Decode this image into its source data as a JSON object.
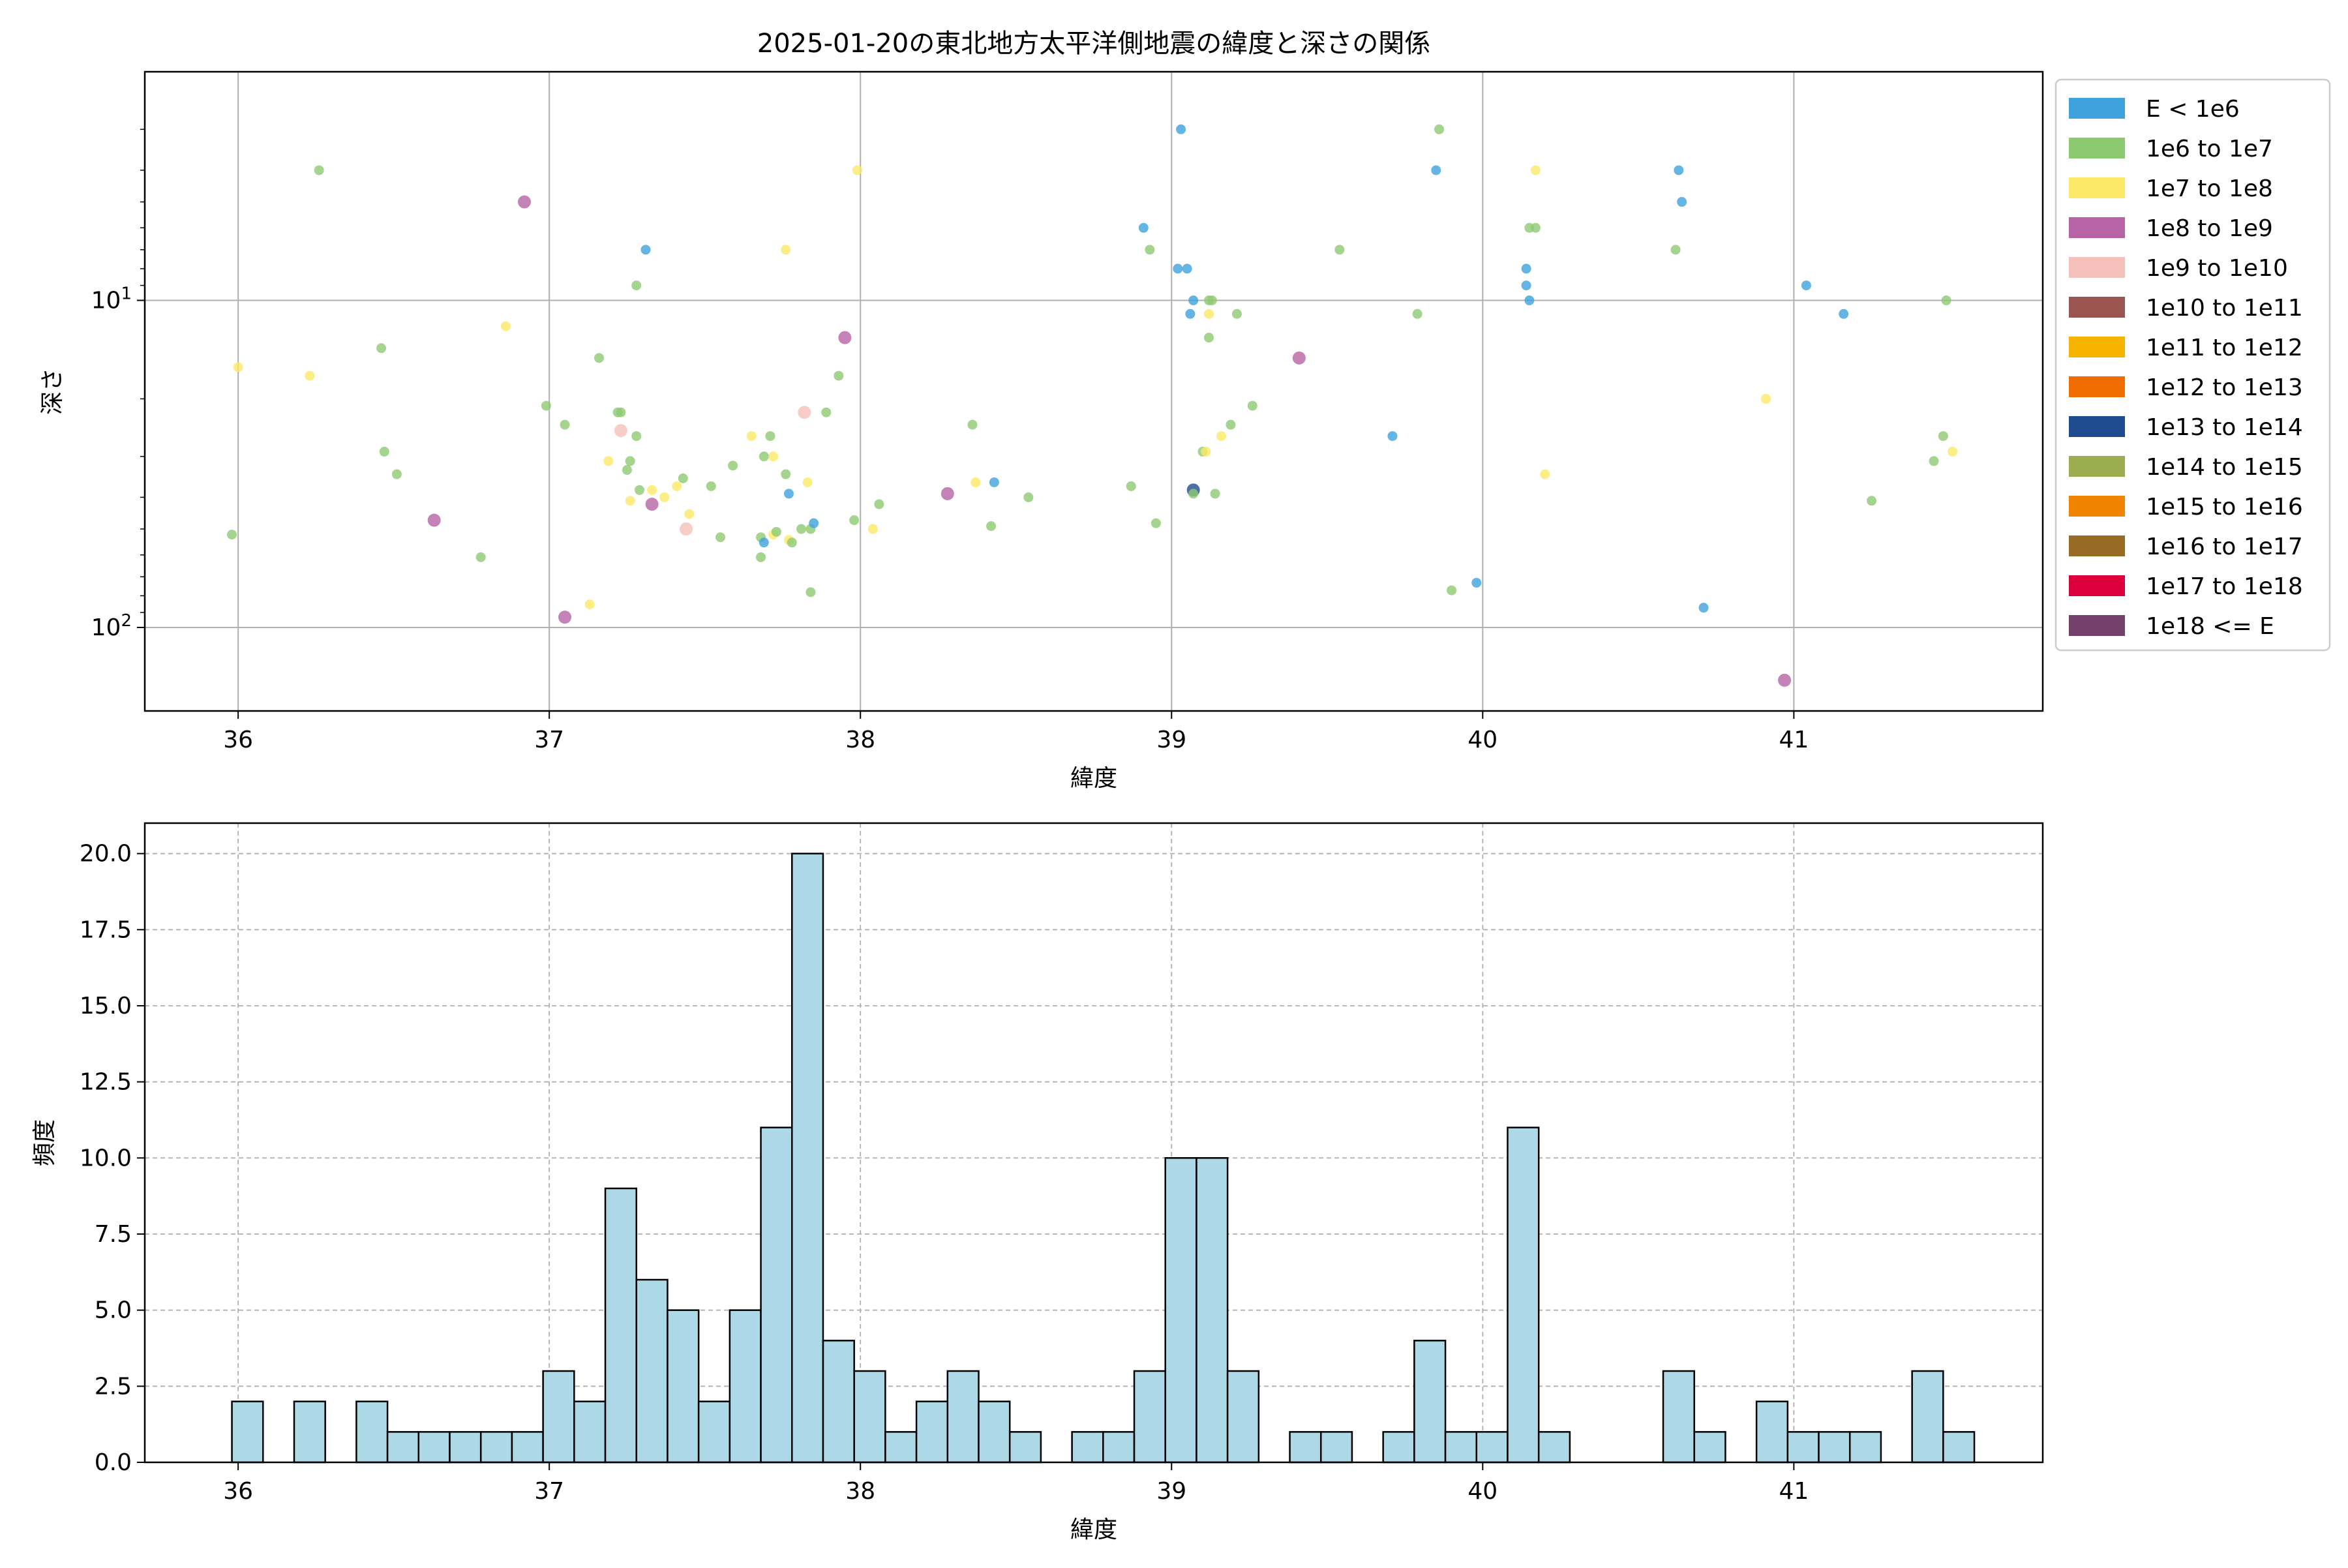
{
  "chart_data": [
    {
      "type": "scatter",
      "title": "2025-01-20の東北地方太平洋側地震の緯度と深さの関係",
      "xlabel": "緯度",
      "ylabel": "深さ",
      "xlim": [
        35.7,
        41.8
      ],
      "ylim": [
        180,
        2
      ],
      "y_scale": "log",
      "y_inverted": true,
      "grid": true,
      "x_ticks": [
        "36",
        "37",
        "38",
        "39",
        "40",
        "41"
      ],
      "y_ticks": [
        {
          "value": 10,
          "base": "10",
          "exp": "1"
        },
        {
          "value": 100,
          "base": "10",
          "exp": "2"
        }
      ],
      "legend_position": "outside-right",
      "legend": [
        {
          "label": "E < 1e6",
          "color": "#3fa2dd"
        },
        {
          "label": "1e6 to 1e7",
          "color": "#8dc971"
        },
        {
          "label": "1e7 to 1e8",
          "color": "#fbe967"
        },
        {
          "label": "1e8 to 1e9",
          "color": "#b763a5"
        },
        {
          "label": "1e9 to 1e10",
          "color": "#f5c0b9"
        },
        {
          "label": "1e10 to 1e11",
          "color": "#9a5550"
        },
        {
          "label": "1e11 to 1e12",
          "color": "#f6b400"
        },
        {
          "label": "1e12 to 1e13",
          "color": "#ee6c00"
        },
        {
          "label": "1e13 to 1e14",
          "color": "#1f4b91"
        },
        {
          "label": "1e14 to 1e15",
          "color": "#9cad4f"
        },
        {
          "label": "1e15 to 1e16",
          "color": "#f08300"
        },
        {
          "label": "1e16 to 1e17",
          "color": "#976b23"
        },
        {
          "label": "1e17 to 1e18",
          "color": "#db003c"
        },
        {
          "label": "1e18 <= E",
          "color": "#72406b"
        }
      ],
      "points": [
        {
          "x": 35.98,
          "y": 52,
          "c": 1
        },
        {
          "x": 36.0,
          "y": 16,
          "c": 2
        },
        {
          "x": 36.23,
          "y": 17,
          "c": 2
        },
        {
          "x": 36.26,
          "y": 4,
          "c": 1
        },
        {
          "x": 36.46,
          "y": 14,
          "c": 1
        },
        {
          "x": 36.47,
          "y": 29,
          "c": 1
        },
        {
          "x": 36.51,
          "y": 34,
          "c": 1
        },
        {
          "x": 36.63,
          "y": 47,
          "c": 3
        },
        {
          "x": 36.78,
          "y": 61,
          "c": 1
        },
        {
          "x": 36.86,
          "y": 12,
          "c": 2
        },
        {
          "x": 36.92,
          "y": 5,
          "c": 3
        },
        {
          "x": 36.99,
          "y": 21,
          "c": 1
        },
        {
          "x": 37.05,
          "y": 24,
          "c": 1
        },
        {
          "x": 37.05,
          "y": 93,
          "c": 3
        },
        {
          "x": 37.13,
          "y": 85,
          "c": 2
        },
        {
          "x": 37.16,
          "y": 15,
          "c": 1
        },
        {
          "x": 37.19,
          "y": 31,
          "c": 2
        },
        {
          "x": 37.22,
          "y": 22,
          "c": 1
        },
        {
          "x": 37.23,
          "y": 22,
          "c": 1
        },
        {
          "x": 37.23,
          "y": 25,
          "c": 4
        },
        {
          "x": 37.25,
          "y": 33,
          "c": 1
        },
        {
          "x": 37.26,
          "y": 31,
          "c": 1
        },
        {
          "x": 37.26,
          "y": 41,
          "c": 2
        },
        {
          "x": 37.28,
          "y": 9,
          "c": 1
        },
        {
          "x": 37.28,
          "y": 26,
          "c": 1
        },
        {
          "x": 37.29,
          "y": 38,
          "c": 1
        },
        {
          "x": 37.31,
          "y": 7,
          "c": 0
        },
        {
          "x": 37.33,
          "y": 38,
          "c": 2
        },
        {
          "x": 37.33,
          "y": 42,
          "c": 3
        },
        {
          "x": 37.37,
          "y": 40,
          "c": 2
        },
        {
          "x": 37.41,
          "y": 37,
          "c": 2
        },
        {
          "x": 37.43,
          "y": 35,
          "c": 1
        },
        {
          "x": 37.44,
          "y": 50,
          "c": 4
        },
        {
          "x": 37.45,
          "y": 45,
          "c": 2
        },
        {
          "x": 37.52,
          "y": 37,
          "c": 1
        },
        {
          "x": 37.55,
          "y": 53,
          "c": 1
        },
        {
          "x": 37.59,
          "y": 32,
          "c": 1
        },
        {
          "x": 37.65,
          "y": 26,
          "c": 2
        },
        {
          "x": 37.68,
          "y": 53,
          "c": 1
        },
        {
          "x": 37.68,
          "y": 61,
          "c": 1
        },
        {
          "x": 37.69,
          "y": 30,
          "c": 1
        },
        {
          "x": 37.69,
          "y": 55,
          "c": 0
        },
        {
          "x": 37.71,
          "y": 26,
          "c": 1
        },
        {
          "x": 37.72,
          "y": 30,
          "c": 2
        },
        {
          "x": 37.72,
          "y": 52,
          "c": 2
        },
        {
          "x": 37.73,
          "y": 51,
          "c": 1
        },
        {
          "x": 37.76,
          "y": 7,
          "c": 2
        },
        {
          "x": 37.76,
          "y": 34,
          "c": 1
        },
        {
          "x": 37.77,
          "y": 39,
          "c": 0
        },
        {
          "x": 37.77,
          "y": 54,
          "c": 2
        },
        {
          "x": 37.78,
          "y": 55,
          "c": 1
        },
        {
          "x": 37.81,
          "y": 50,
          "c": 1
        },
        {
          "x": 37.82,
          "y": 22,
          "c": 4
        },
        {
          "x": 37.83,
          "y": 36,
          "c": 2
        },
        {
          "x": 37.84,
          "y": 78,
          "c": 1
        },
        {
          "x": 37.84,
          "y": 50,
          "c": 1
        },
        {
          "x": 37.85,
          "y": 48,
          "c": 0
        },
        {
          "x": 37.89,
          "y": 22,
          "c": 1
        },
        {
          "x": 37.93,
          "y": 17,
          "c": 1
        },
        {
          "x": 37.95,
          "y": 13,
          "c": 3
        },
        {
          "x": 37.98,
          "y": 47,
          "c": 1
        },
        {
          "x": 37.99,
          "y": 4,
          "c": 2
        },
        {
          "x": 38.04,
          "y": 50,
          "c": 2
        },
        {
          "x": 38.06,
          "y": 42,
          "c": 1
        },
        {
          "x": 38.28,
          "y": 39,
          "c": 3
        },
        {
          "x": 38.36,
          "y": 24,
          "c": 1
        },
        {
          "x": 38.37,
          "y": 36,
          "c": 2
        },
        {
          "x": 38.42,
          "y": 49,
          "c": 1
        },
        {
          "x": 38.43,
          "y": 36,
          "c": 0
        },
        {
          "x": 38.54,
          "y": 40,
          "c": 1
        },
        {
          "x": 38.87,
          "y": 37,
          "c": 1
        },
        {
          "x": 38.91,
          "y": 6,
          "c": 0
        },
        {
          "x": 38.93,
          "y": 7,
          "c": 1
        },
        {
          "x": 38.95,
          "y": 48,
          "c": 1
        },
        {
          "x": 39.02,
          "y": 8,
          "c": 0
        },
        {
          "x": 39.03,
          "y": 3,
          "c": 0
        },
        {
          "x": 39.05,
          "y": 8,
          "c": 0
        },
        {
          "x": 39.06,
          "y": 11,
          "c": 0
        },
        {
          "x": 39.07,
          "y": 10,
          "c": 0
        },
        {
          "x": 39.07,
          "y": 38,
          "c": 8
        },
        {
          "x": 39.07,
          "y": 39,
          "c": 1
        },
        {
          "x": 39.1,
          "y": 29,
          "c": 1
        },
        {
          "x": 39.11,
          "y": 29,
          "c": 2
        },
        {
          "x": 39.12,
          "y": 10,
          "c": 1
        },
        {
          "x": 39.12,
          "y": 11,
          "c": 2
        },
        {
          "x": 39.12,
          "y": 13,
          "c": 1
        },
        {
          "x": 39.13,
          "y": 10,
          "c": 1
        },
        {
          "x": 39.14,
          "y": 39,
          "c": 1
        },
        {
          "x": 39.16,
          "y": 26,
          "c": 2
        },
        {
          "x": 39.19,
          "y": 24,
          "c": 1
        },
        {
          "x": 39.21,
          "y": 11,
          "c": 1
        },
        {
          "x": 39.26,
          "y": 21,
          "c": 1
        },
        {
          "x": 39.41,
          "y": 15,
          "c": 3
        },
        {
          "x": 39.54,
          "y": 7,
          "c": 1
        },
        {
          "x": 39.71,
          "y": 26,
          "c": 0
        },
        {
          "x": 39.79,
          "y": 11,
          "c": 1
        },
        {
          "x": 39.85,
          "y": 4,
          "c": 0
        },
        {
          "x": 39.86,
          "y": 3,
          "c": 1
        },
        {
          "x": 39.9,
          "y": 77,
          "c": 1
        },
        {
          "x": 39.98,
          "y": 73,
          "c": 0
        },
        {
          "x": 40.14,
          "y": 8,
          "c": 0
        },
        {
          "x": 40.14,
          "y": 9,
          "c": 0
        },
        {
          "x": 40.15,
          "y": 10,
          "c": 0
        },
        {
          "x": 40.15,
          "y": 6,
          "c": 1
        },
        {
          "x": 40.17,
          "y": 6,
          "c": 1
        },
        {
          "x": 40.17,
          "y": 4,
          "c": 2
        },
        {
          "x": 40.2,
          "y": 34,
          "c": 2
        },
        {
          "x": 40.62,
          "y": 7,
          "c": 1
        },
        {
          "x": 40.63,
          "y": 4,
          "c": 0
        },
        {
          "x": 40.64,
          "y": 5,
          "c": 0
        },
        {
          "x": 40.71,
          "y": 87,
          "c": 0
        },
        {
          "x": 40.91,
          "y": 20,
          "c": 2
        },
        {
          "x": 40.97,
          "y": 145,
          "c": 3
        },
        {
          "x": 41.04,
          "y": 9,
          "c": 0
        },
        {
          "x": 41.16,
          "y": 11,
          "c": 0
        },
        {
          "x": 41.25,
          "y": 41,
          "c": 1
        },
        {
          "x": 41.45,
          "y": 31,
          "c": 1
        },
        {
          "x": 41.48,
          "y": 26,
          "c": 1
        },
        {
          "x": 41.49,
          "y": 10,
          "c": 1
        },
        {
          "x": 41.51,
          "y": 29,
          "c": 2
        }
      ]
    },
    {
      "type": "bar",
      "subtype": "histogram",
      "xlabel": "緯度",
      "ylabel": "頻度",
      "xlim": [
        35.7,
        41.8
      ],
      "ylim": [
        0,
        21
      ],
      "grid": true,
      "bar_color": "#add8e6",
      "x_ticks": [
        "36",
        "37",
        "38",
        "39",
        "40",
        "41"
      ],
      "y_ticks": [
        "0.0",
        "2.5",
        "5.0",
        "7.5",
        "10.0",
        "12.5",
        "15.0",
        "17.5",
        "20.0"
      ],
      "bin_start": 35.98,
      "bin_width": 0.1,
      "counts": [
        2,
        0,
        2,
        0,
        2,
        1,
        1,
        1,
        1,
        1,
        3,
        2,
        9,
        6,
        5,
        2,
        5,
        11,
        20,
        4,
        3,
        1,
        2,
        3,
        2,
        1,
        0,
        1,
        1,
        3,
        10,
        10,
        3,
        0,
        1,
        1,
        0,
        1,
        4,
        1,
        1,
        11,
        1,
        0,
        0,
        0,
        3,
        1,
        0,
        2,
        1,
        1,
        1,
        0,
        3,
        1
      ]
    }
  ]
}
